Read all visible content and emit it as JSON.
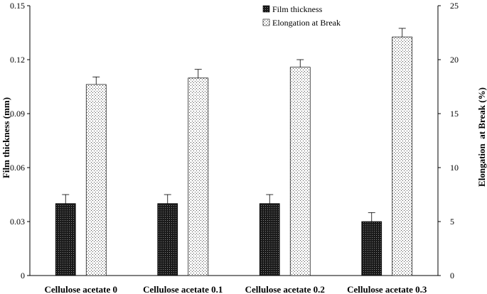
{
  "chart_data": {
    "type": "bar",
    "categories": [
      "Cellulose acetate 0",
      "Cellulose acetate 0.1",
      "Cellulose acetate 0.2",
      "Cellulose acetate 0.3"
    ],
    "series": [
      {
        "name": "Film thickness",
        "axis": "left",
        "values": [
          0.04,
          0.04,
          0.04,
          0.03
        ],
        "errors": [
          0.005,
          0.005,
          0.005,
          0.005
        ],
        "pattern": "dark-dots"
      },
      {
        "name": "Elongation at Break",
        "axis": "right",
        "values": [
          17.7,
          18.3,
          19.3,
          22.1
        ],
        "errors": [
          0.7,
          0.8,
          0.7,
          0.8
        ],
        "pattern": "light-dots"
      }
    ],
    "ylabel_left": "Film thickness (mm)",
    "ylabel_right": "Elongation  at Break (%)",
    "ylim_left": [
      0,
      0.15
    ],
    "ylim_right": [
      0,
      25
    ],
    "yticks_left": [
      "0",
      "0.03",
      "0.06",
      "0.09",
      "0.12",
      "0.15"
    ],
    "yticks_right": [
      "0",
      "5",
      "10",
      "15",
      "20",
      "25"
    ],
    "grid": false,
    "legend_position": "top-center"
  }
}
